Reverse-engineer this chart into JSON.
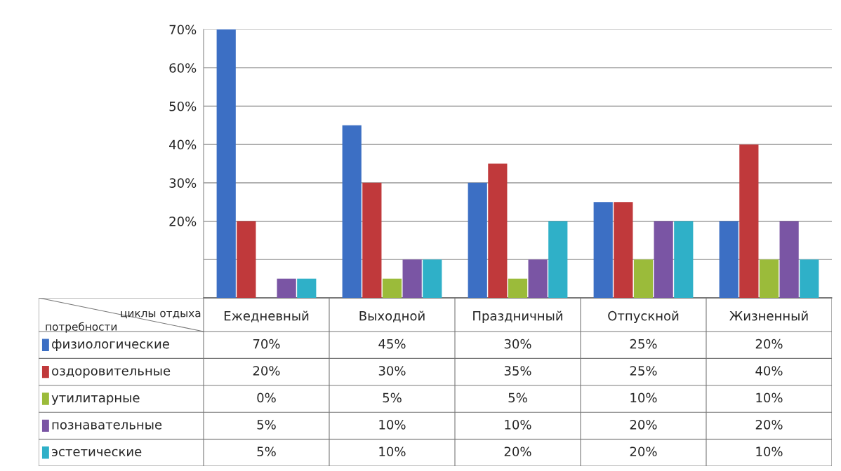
{
  "chart_data": {
    "type": "bar",
    "categories": [
      "Ежедневный",
      "Выходной",
      "Праздничный",
      "Отпускной",
      "Жизненный"
    ],
    "series": [
      {
        "name": "физиологические",
        "color": "#3c6fc4",
        "values": [
          70,
          45,
          30,
          25,
          20
        ],
        "value_labels": [
          "70%",
          "45%",
          "30%",
          "25%",
          "20%"
        ]
      },
      {
        "name": "оздоровительные",
        "color": "#c0393b",
        "values": [
          20,
          30,
          35,
          25,
          40
        ],
        "value_labels": [
          "20%",
          "30%",
          "35%",
          "25%",
          "40%"
        ]
      },
      {
        "name": "утилитарные",
        "color": "#9bbb3a",
        "values": [
          0,
          5,
          5,
          10,
          10
        ],
        "value_labels": [
          "0%",
          "5%",
          "5%",
          "10%",
          "10%"
        ]
      },
      {
        "name": "познавательные",
        "color": "#7a55a4",
        "values": [
          5,
          10,
          10,
          20,
          20
        ],
        "value_labels": [
          "5%",
          "10%",
          "10%",
          "20%",
          "20%"
        ]
      },
      {
        "name": "эстетические",
        "color": "#2fb0c8",
        "values": [
          5,
          10,
          20,
          20,
          10
        ],
        "value_labels": [
          "5%",
          "10%",
          "20%",
          "20%",
          "10%"
        ]
      }
    ],
    "ylim": [
      0,
      70
    ],
    "yticks": [
      {
        "value": 0,
        "label": null
      },
      {
        "value": 10,
        "label": null
      },
      {
        "value": 20,
        "label": "20%"
      },
      {
        "value": 30,
        "label": "30%"
      },
      {
        "value": 40,
        "label": "40%"
      },
      {
        "value": 50,
        "label": "50%"
      },
      {
        "value": 60,
        "label": "60%"
      },
      {
        "value": 70,
        "label": "70%"
      }
    ],
    "grid": "y",
    "legend": "bottom",
    "annotations": [
      "циклы отдыха",
      "потребности"
    ]
  }
}
